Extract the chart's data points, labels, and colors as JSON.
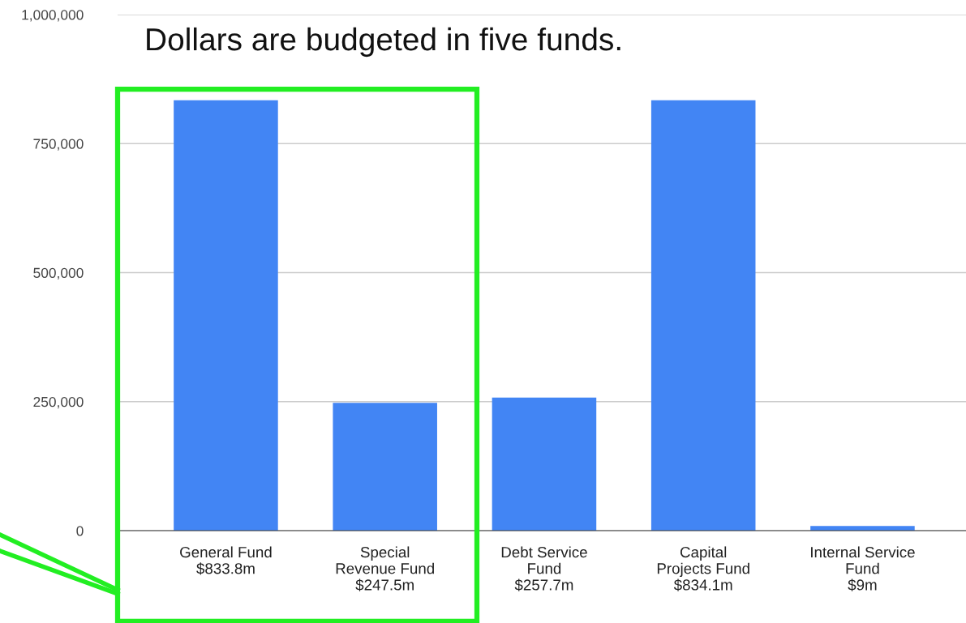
{
  "chart_data": {
    "type": "bar",
    "title": "Dollars are budgeted in five funds.",
    "categories": [
      "General Fund\n$833.8m",
      "Special\nRevenue Fund\n$247.5m",
      "Debt Service\nFund\n$257.7m",
      "Capital\nProjects Fund\n$834.1m",
      "Internal Service\nFund\n$9m"
    ],
    "values": [
      833800,
      247500,
      257700,
      834100,
      9000
    ],
    "color": "#4285f4",
    "ylim": [
      0,
      1000000
    ],
    "yticks": [
      {
        "value": 0,
        "label": "0"
      },
      {
        "value": 250000,
        "label": "250,000"
      },
      {
        "value": 500000,
        "label": "500,000"
      },
      {
        "value": 750000,
        "label": "750,000"
      },
      {
        "value": 1000000,
        "label": "1,000,000"
      }
    ],
    "grid": "y",
    "legend": false
  }
}
